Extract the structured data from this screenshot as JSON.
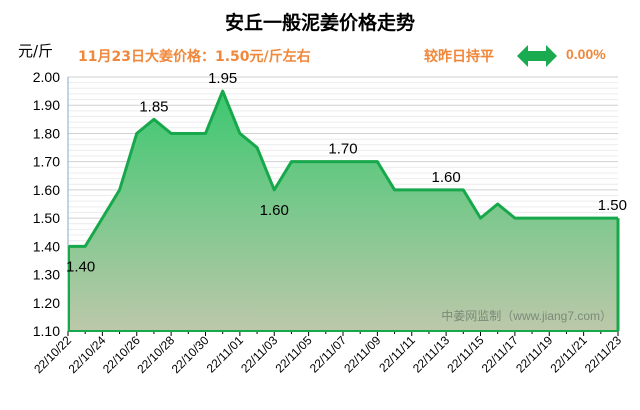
{
  "header": {
    "title": "安丘一般泥姜价格走势",
    "unit": "元/斤",
    "price_info": "11月23日大姜价格：1.50元/斤左右",
    "comparison": "较昨日持平",
    "change_icon": "left-right-arrow-icon",
    "change_pct": "0.00%"
  },
  "colors": {
    "line": "#18a84c",
    "fill_top": "#3cc870",
    "fill_bottom": "#bcc8aa",
    "accent": "#f0873a"
  },
  "chart_data": {
    "type": "area",
    "title": "安丘一般泥姜价格走势",
    "ylabel": "元/斤",
    "ylim": [
      1.1,
      2.0
    ],
    "yticks": [
      "1.10",
      "1.20",
      "1.30",
      "1.40",
      "1.50",
      "1.60",
      "1.70",
      "1.80",
      "1.90",
      "2.00"
    ],
    "grid": true,
    "x": [
      "22/10/22",
      "22/10/23",
      "22/10/24",
      "22/10/25",
      "22/10/26",
      "22/10/27",
      "22/10/28",
      "22/10/29",
      "22/10/30",
      "22/10/31",
      "22/11/01",
      "22/11/02",
      "22/11/03",
      "22/11/04",
      "22/11/05",
      "22/11/06",
      "22/11/07",
      "22/11/08",
      "22/11/09",
      "22/11/10",
      "22/11/11",
      "22/11/12",
      "22/11/13",
      "22/11/14",
      "22/11/15",
      "22/11/16",
      "22/11/17",
      "22/11/18",
      "22/11/19",
      "22/11/20",
      "22/11/21",
      "22/11/22",
      "22/11/23"
    ],
    "xticks": [
      "22/10/22",
      "22/10/24",
      "22/10/26",
      "22/10/28",
      "22/10/30",
      "22/11/01",
      "22/11/03",
      "22/11/05",
      "22/11/07",
      "22/11/09",
      "22/11/11",
      "22/11/13",
      "22/11/15",
      "22/11/17",
      "22/11/19",
      "22/11/21",
      "22/11/23"
    ],
    "values": [
      1.4,
      1.4,
      1.5,
      1.6,
      1.8,
      1.85,
      1.8,
      1.8,
      1.8,
      1.95,
      1.8,
      1.75,
      1.6,
      1.7,
      1.7,
      1.7,
      1.7,
      1.7,
      1.7,
      1.6,
      1.6,
      1.6,
      1.6,
      1.6,
      1.5,
      1.55,
      1.5,
      1.5,
      1.5,
      1.5,
      1.5,
      1.5,
      1.5
    ],
    "data_labels": [
      {
        "date": "22/10/22",
        "text": "1.40",
        "position": "below"
      },
      {
        "date": "22/10/27",
        "text": "1.85",
        "position": "above"
      },
      {
        "date": "22/10/31",
        "text": "1.95",
        "position": "above"
      },
      {
        "date": "22/11/03",
        "text": "1.60",
        "position": "below"
      },
      {
        "date": "22/11/07",
        "text": "1.70",
        "position": "above"
      },
      {
        "date": "22/11/13",
        "text": "1.60",
        "position": "above"
      },
      {
        "date": "22/11/23",
        "text": "1.50",
        "position": "above"
      }
    ],
    "watermark": "中姜网监制（www.jiang7.com）"
  }
}
